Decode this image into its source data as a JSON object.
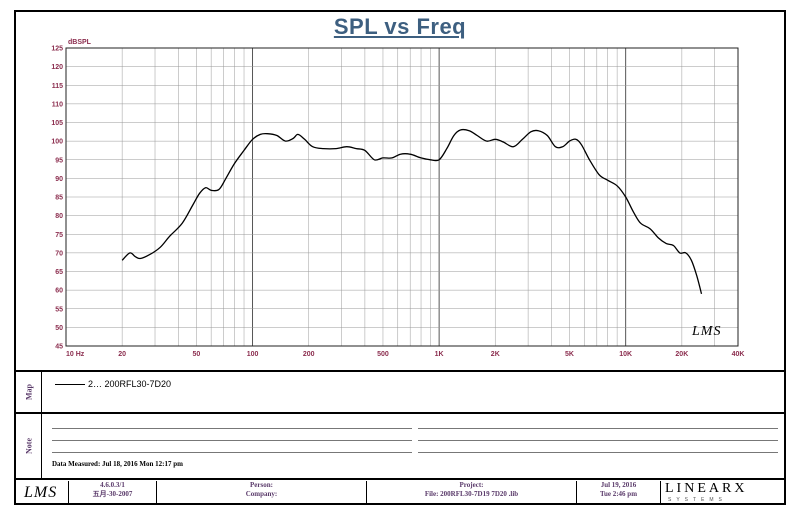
{
  "chart_data": {
    "type": "line",
    "title": "SPL vs Freq",
    "ylabel": "dBSPL",
    "xscale": "log",
    "xlim": [
      10,
      40000
    ],
    "ylim": [
      45,
      125
    ],
    "grid": true,
    "x_ticks": [
      {
        "value": 10,
        "label": "10  Hz"
      },
      {
        "value": 20,
        "label": "20"
      },
      {
        "value": 50,
        "label": "50"
      },
      {
        "value": 100,
        "label": "100"
      },
      {
        "value": 200,
        "label": "200"
      },
      {
        "value": 500,
        "label": "500"
      },
      {
        "value": 1000,
        "label": "1K"
      },
      {
        "value": 2000,
        "label": "2K"
      },
      {
        "value": 5000,
        "label": "5K"
      },
      {
        "value": 10000,
        "label": "10K"
      },
      {
        "value": 20000,
        "label": "20K"
      },
      {
        "value": 40000,
        "label": "40K"
      }
    ],
    "y_ticks": [
      45,
      50,
      55,
      60,
      65,
      70,
      75,
      80,
      85,
      90,
      95,
      100,
      105,
      110,
      115,
      120,
      125
    ],
    "series": [
      {
        "name": "200RFL30-7D20",
        "color": "#000000",
        "points": [
          [
            20,
            68
          ],
          [
            22,
            70
          ],
          [
            23.5,
            69
          ],
          [
            25,
            68.5
          ],
          [
            28,
            69.5
          ],
          [
            32,
            71.5
          ],
          [
            36,
            74.5
          ],
          [
            42,
            78
          ],
          [
            48,
            83
          ],
          [
            52,
            86
          ],
          [
            56,
            87.5
          ],
          [
            60,
            86.8
          ],
          [
            66,
            87
          ],
          [
            72,
            90
          ],
          [
            80,
            94
          ],
          [
            90,
            97.5
          ],
          [
            100,
            100.5
          ],
          [
            110,
            101.8
          ],
          [
            120,
            102
          ],
          [
            135,
            101.5
          ],
          [
            150,
            100
          ],
          [
            165,
            100.7
          ],
          [
            175,
            101.8
          ],
          [
            190,
            100.5
          ],
          [
            210,
            98.5
          ],
          [
            240,
            98
          ],
          [
            280,
            98
          ],
          [
            320,
            98.5
          ],
          [
            360,
            98
          ],
          [
            400,
            97.5
          ],
          [
            450,
            95
          ],
          [
            500,
            95.5
          ],
          [
            560,
            95.5
          ],
          [
            620,
            96.5
          ],
          [
            700,
            96.5
          ],
          [
            800,
            95.5
          ],
          [
            900,
            95
          ],
          [
            1000,
            95
          ],
          [
            1100,
            98
          ],
          [
            1200,
            101.5
          ],
          [
            1300,
            103
          ],
          [
            1450,
            102.8
          ],
          [
            1600,
            101.5
          ],
          [
            1800,
            100
          ],
          [
            2000,
            100.5
          ],
          [
            2200,
            99.8
          ],
          [
            2500,
            98.5
          ],
          [
            2800,
            100.5
          ],
          [
            3100,
            102.5
          ],
          [
            3400,
            102.8
          ],
          [
            3800,
            101.5
          ],
          [
            4200,
            98.5
          ],
          [
            4600,
            98.5
          ],
          [
            5000,
            100
          ],
          [
            5400,
            100.5
          ],
          [
            5800,
            99
          ],
          [
            6400,
            95
          ],
          [
            7200,
            91
          ],
          [
            8000,
            89.5
          ],
          [
            9000,
            88
          ],
          [
            10000,
            85
          ],
          [
            11000,
            81
          ],
          [
            12000,
            78
          ],
          [
            13500,
            76.5
          ],
          [
            15000,
            74
          ],
          [
            16500,
            72.5
          ],
          [
            18000,
            72
          ],
          [
            19500,
            70
          ],
          [
            21000,
            70
          ],
          [
            22500,
            68
          ],
          [
            24000,
            64
          ],
          [
            25500,
            59
          ]
        ]
      }
    ]
  },
  "legend": {
    "label": "2…  200RFL30-7D20"
  },
  "panels": {
    "map_label": "Map",
    "note_label": "Note"
  },
  "measured": "Data Measured: Jul 18, 2016  Mon 12:17 pm",
  "watermark": "LMS",
  "footer": {
    "logo": "LMS",
    "version": "4.6.0.3/1",
    "version_date": "五月-30-2007",
    "person_label": "Person:",
    "company_label": "Company:",
    "project_label": "Project:",
    "file_label": "File: 200RFL30-7D19  7D20 .lib",
    "date": "Jul 19, 2016",
    "time": "Tue  2:46 pm",
    "brand": "LINEARX",
    "brand_sub": "SYSTEMS"
  }
}
